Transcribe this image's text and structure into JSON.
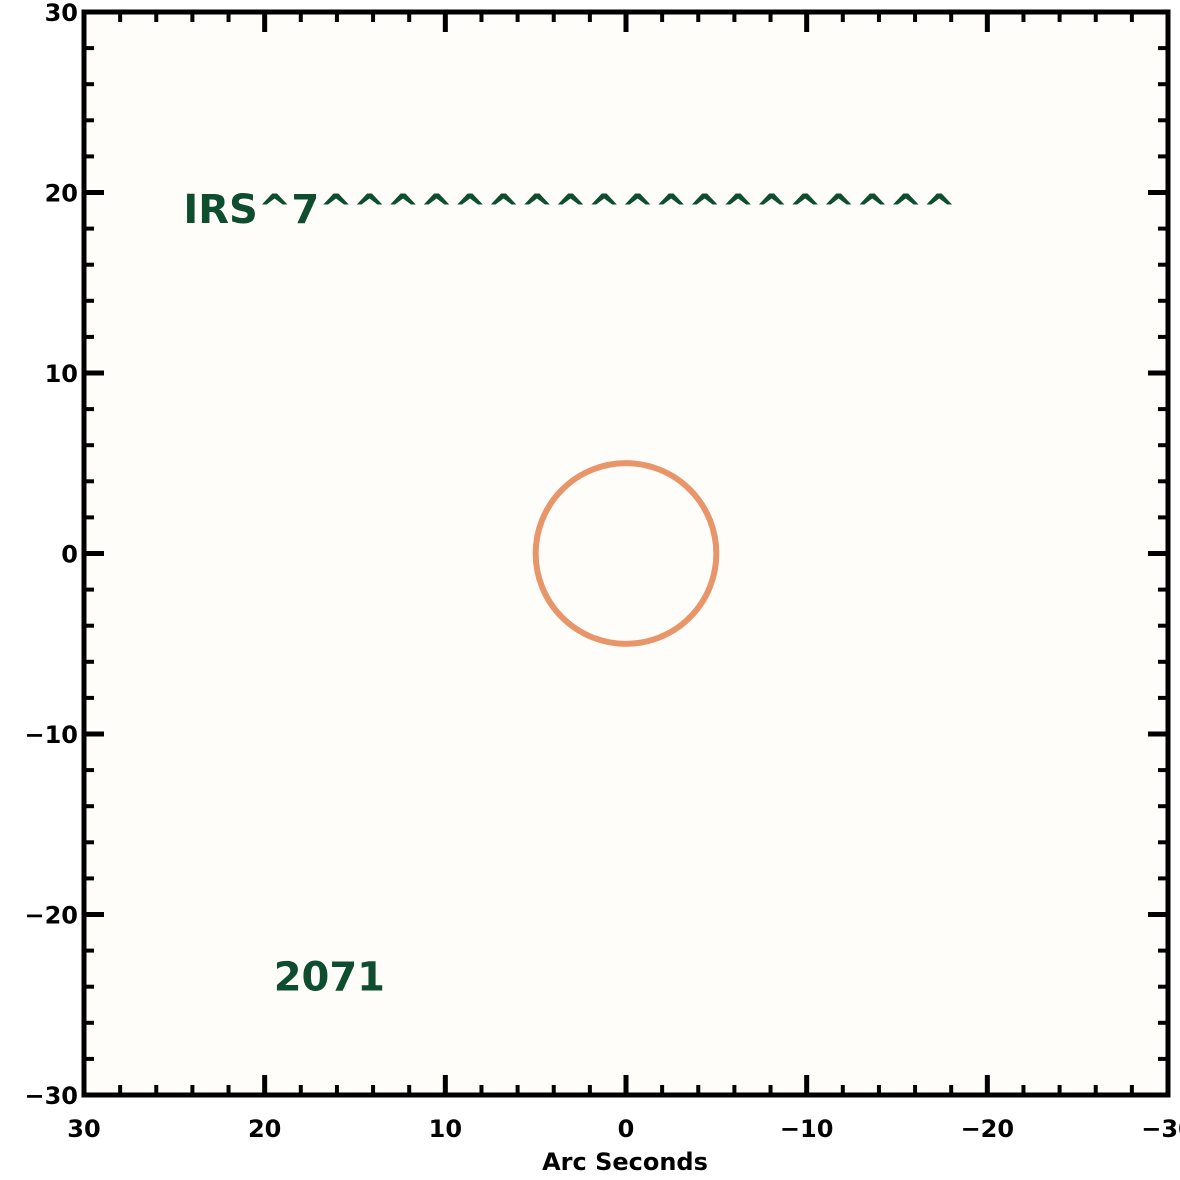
{
  "chart_data": {
    "type": "scatter",
    "title": "",
    "xlabel": "Arc Seconds",
    "ylabel": "",
    "xlim": [
      30,
      -30
    ],
    "ylim": [
      -30,
      30
    ],
    "x_ticks": [
      30,
      20,
      10,
      0,
      -10,
      -20,
      -30
    ],
    "x_tick_labels": [
      "30",
      "20",
      "10",
      "0",
      "−10",
      "−20",
      "−30"
    ],
    "y_ticks": [
      30,
      20,
      10,
      0,
      -10,
      -20,
      -30
    ],
    "y_tick_labels": [
      "30",
      "20",
      "10",
      "0",
      "−10",
      "−20",
      "−30"
    ],
    "x_minor_step": 2,
    "y_minor_step": 2,
    "grid": false,
    "background": "#fffdfa",
    "circle": {
      "center": [
        0,
        0
      ],
      "radius": 5,
      "color": "#e8956a"
    },
    "annotations": [
      {
        "text": "IRS^7^^^^^^^^^^^^^^^^^^^",
        "x": 24.5,
        "y": 18.3,
        "color": "#0e4d2d"
      },
      {
        "text": "2071",
        "x": 19.5,
        "y": -24.2,
        "color": "#0e4d2d"
      }
    ]
  }
}
